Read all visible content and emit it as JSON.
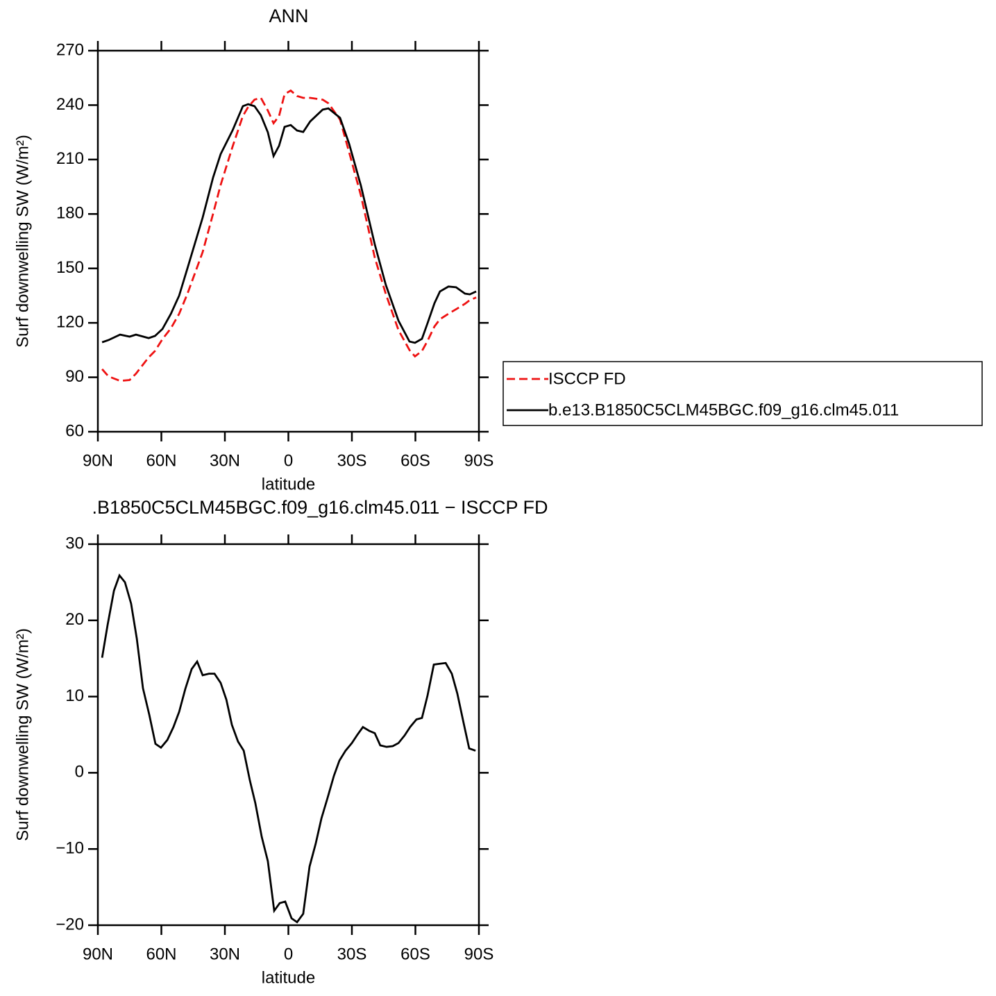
{
  "chart_data": [
    {
      "type": "line",
      "title": "ANN",
      "xlabel": "latitude",
      "ylabel": "Surf downwelling SW (W/m²)",
      "x": [
        88,
        85,
        79.5,
        75,
        72,
        66,
        63,
        59.5,
        55.5,
        51.6,
        47.7,
        40.5,
        35.6,
        32,
        26.4,
        21.5,
        19,
        16,
        13,
        9.7,
        7,
        4.4,
        1.8,
        -1.1,
        -4.1,
        -7,
        -10.3,
        -16.2,
        -18.9,
        -24.4,
        -28.7,
        -34.3,
        -40.8,
        -46,
        -52,
        -57.2,
        -59.8,
        -63.1,
        -65.7,
        -69,
        -71.6,
        -75.6,
        -79.2,
        -83.4,
        -85.7,
        -88.7
      ],
      "series": [
        {
          "name": "ISCCP FD",
          "color": "#ee1111",
          "dashed": true,
          "values": [
            94.5,
            90.5,
            88,
            88.5,
            92,
            101,
            104.5,
            111,
            117,
            125,
            136,
            159,
            180,
            196,
            217,
            234,
            239,
            243,
            244,
            237,
            230,
            234,
            246,
            248,
            245,
            244,
            244,
            243,
            241,
            232,
            214,
            190,
            156,
            136,
            116,
            105,
            101.5,
            104.5,
            110,
            118,
            122,
            125,
            127.5,
            130.5,
            132.5,
            134
          ]
        },
        {
          "name": "b.e13.B1850C5CLM45BGC.f09_g16.clm45.011",
          "color": "#000000",
          "dashed": false,
          "values": [
            109.3,
            110.5,
            113.5,
            112.4,
            113.5,
            111.6,
            112.8,
            116.6,
            125,
            135,
            150,
            178,
            200,
            213,
            226,
            239.4,
            240.5,
            239.4,
            234.4,
            225,
            211.9,
            217.6,
            228,
            229,
            226,
            225.2,
            231,
            237.5,
            238.2,
            233,
            218.7,
            195.4,
            163.3,
            141,
            121.2,
            109.7,
            109,
            111.2,
            119.7,
            130.8,
            137.3,
            140,
            139.6,
            136.1,
            135.7,
            137.3
          ]
        }
      ],
      "xlim": [
        90,
        -90
      ],
      "xticks": [
        {
          "value": 90,
          "label": "90N"
        },
        {
          "value": 60,
          "label": "60N"
        },
        {
          "value": 30,
          "label": "30N"
        },
        0,
        {
          "value": -30,
          "label": "30S"
        },
        {
          "value": -60,
          "label": "60S"
        },
        {
          "value": -90,
          "label": "90S"
        }
      ],
      "ylim": [
        60,
        270
      ],
      "yticks": [
        60,
        90,
        120,
        150,
        180,
        210,
        240,
        270
      ],
      "legend": "right"
    },
    {
      "type": "line",
      "title": ".B1850C5CLM45BGC.f09_g16.clm45.011 − ISCCP FD",
      "xlabel": "latitude",
      "ylabel": "Surf downwelling SW (W/m²)",
      "x": [
        88,
        85.4,
        82.4,
        79.8,
        77.2,
        74.3,
        71.6,
        68.7,
        65.7,
        62.8,
        60.2,
        57.2,
        54.3,
        51.6,
        48.7,
        45.7,
        43.1,
        40.5,
        37.5,
        34.9,
        32,
        29.3,
        26.7,
        23.8,
        21.1,
        18.2,
        15.6,
        12.6,
        9.7,
        6.7,
        4.1,
        1.5,
        -1.5,
        -4.1,
        -7,
        -10,
        -12.9,
        -15.6,
        -18.5,
        -21.5,
        -24.1,
        -27,
        -30,
        -32.6,
        -35.2,
        -38.2,
        -40.8,
        -43.4,
        -46.4,
        -49.3,
        -52,
        -54.9,
        -57.5,
        -60.5,
        -63.1,
        -65.7,
        -68.7,
        -71.3,
        -74.3,
        -77.2,
        -79.8,
        -82.8,
        -85.4,
        -88.4
      ],
      "series": [
        {
          "color": "#000000",
          "dashed": false,
          "values": [
            15.1,
            19.4,
            23.9,
            25.9,
            25,
            22.2,
            17.6,
            11.1,
            7.6,
            3.8,
            3.3,
            4.3,
            6,
            8,
            11,
            13.6,
            14.6,
            12.8,
            13,
            13,
            11.8,
            9.6,
            6.3,
            4.1,
            2.9,
            -1,
            -4,
            -8.4,
            -11.6,
            -18.1,
            -17.1,
            -16.9,
            -19.1,
            -19.6,
            -18.5,
            -12.3,
            -9.3,
            -6,
            -3.3,
            -0.4,
            1.6,
            2.9,
            3.9,
            5,
            6,
            5.5,
            5.2,
            3.6,
            3.4,
            3.5,
            3.9,
            4.9,
            6,
            7,
            7.2,
            10.1,
            14.2,
            14.3,
            14.4,
            13,
            10.4,
            6.5,
            3.2,
            2.9
          ]
        }
      ],
      "xlim": [
        90,
        -90
      ],
      "xticks": [
        {
          "value": 90,
          "label": "90N"
        },
        {
          "value": 60,
          "label": "60N"
        },
        {
          "value": 30,
          "label": "30N"
        },
        0,
        {
          "value": -30,
          "label": "30S"
        },
        {
          "value": -60,
          "label": "60S"
        },
        {
          "value": -90,
          "label": "90S"
        }
      ],
      "ylim": [
        -20,
        30
      ],
      "yticks": [
        {
          "value": -20,
          "label": "−20"
        },
        {
          "value": -10,
          "label": "−10"
        },
        0,
        10,
        20,
        30
      ]
    }
  ]
}
